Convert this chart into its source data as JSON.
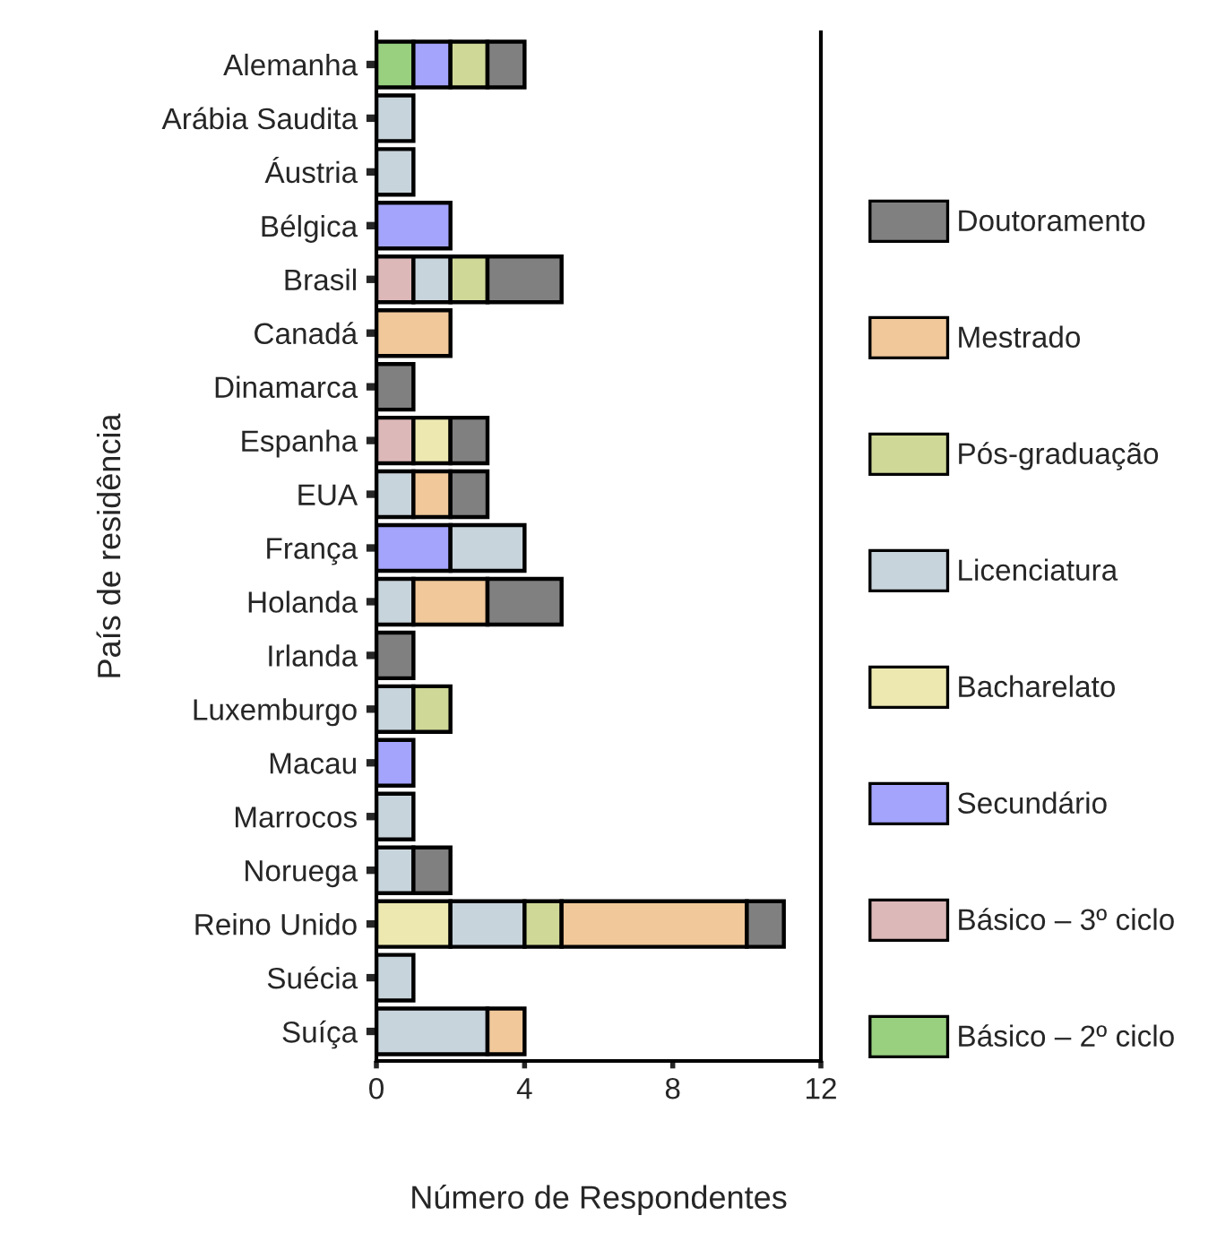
{
  "chart_data": {
    "type": "bar",
    "orientation": "horizontal",
    "stacked": true,
    "xlabel": "Número de Respondentes",
    "ylabel": "País de residência",
    "categories": [
      "Alemanha",
      "Arábia Saudita",
      "Áustria",
      "Bélgica",
      "Brasil",
      "Canadá",
      "Dinamarca",
      "Espanha",
      "EUA",
      "França",
      "Holanda",
      "Irlanda",
      "Luxemburgo",
      "Macau",
      "Marrocos",
      "Noruega",
      "Reino Unido",
      "Suécia",
      "Suíça"
    ],
    "series": [
      {
        "name": "Básico – 2º ciclo",
        "color": "#98d080",
        "values": [
          1,
          0,
          0,
          0,
          0,
          0,
          0,
          0,
          0,
          0,
          0,
          0,
          0,
          0,
          0,
          0,
          0,
          0,
          0
        ]
      },
      {
        "name": "Básico – 3º ciclo",
        "color": "#dcb8b8",
        "values": [
          0,
          0,
          0,
          0,
          1,
          0,
          0,
          1,
          0,
          0,
          0,
          0,
          0,
          0,
          0,
          0,
          0,
          0,
          0
        ]
      },
      {
        "name": "Secundário",
        "color": "#a4a4fc",
        "values": [
          1,
          0,
          0,
          2,
          0,
          0,
          0,
          0,
          0,
          2,
          0,
          0,
          0,
          1,
          0,
          0,
          0,
          0,
          0
        ]
      },
      {
        "name": "Bacharelato",
        "color": "#ece8b0",
        "values": [
          0,
          0,
          0,
          0,
          0,
          0,
          0,
          1,
          0,
          0,
          0,
          0,
          0,
          0,
          0,
          0,
          2,
          0,
          0
        ]
      },
      {
        "name": "Licenciatura",
        "color": "#c8d4dc",
        "values": [
          0,
          1,
          1,
          0,
          1,
          0,
          0,
          0,
          1,
          2,
          1,
          0,
          1,
          0,
          1,
          1,
          2,
          1,
          3
        ]
      },
      {
        "name": "Pós-graduação",
        "color": "#d0d898",
        "values": [
          1,
          0,
          0,
          0,
          1,
          0,
          0,
          0,
          0,
          0,
          0,
          0,
          1,
          0,
          0,
          0,
          1,
          0,
          0
        ]
      },
      {
        "name": "Mestrado",
        "color": "#f0c89a",
        "values": [
          0,
          0,
          0,
          0,
          0,
          2,
          0,
          0,
          1,
          0,
          2,
          0,
          0,
          0,
          0,
          0,
          5,
          0,
          1
        ]
      },
      {
        "name": "Doutoramento",
        "color": "#808080",
        "values": [
          1,
          0,
          0,
          0,
          2,
          0,
          1,
          1,
          1,
          0,
          2,
          1,
          0,
          0,
          0,
          1,
          1,
          0,
          0
        ]
      }
    ],
    "xlim": [
      0,
      12
    ],
    "xticks": [
      0,
      4,
      8,
      12
    ],
    "grid": false,
    "legend": "right"
  }
}
